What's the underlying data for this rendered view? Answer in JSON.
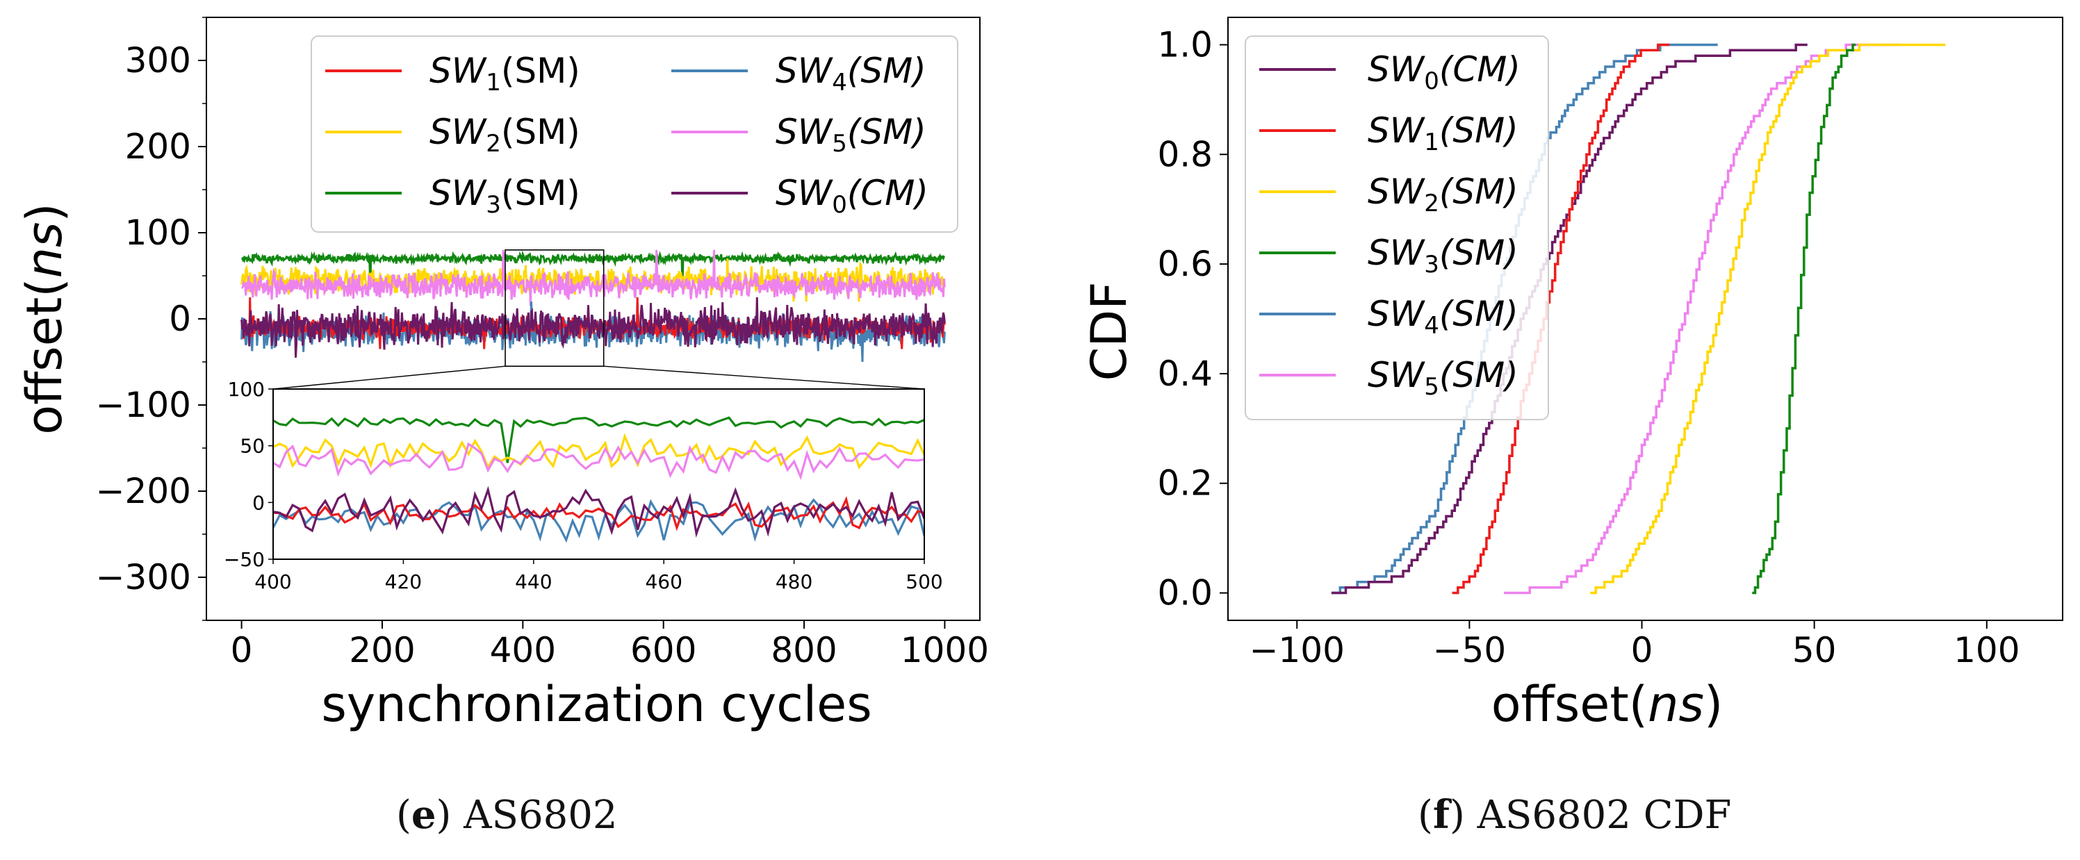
{
  "captions": {
    "e": {
      "letter": "e",
      "text": "AS6802"
    },
    "f": {
      "letter": "f",
      "text": "AS6802 CDF"
    }
  },
  "chart_data": [
    {
      "id": "panel-e",
      "type": "line",
      "title": "",
      "xlabel": "synchronization cycles",
      "ylabel": "offset(ns)",
      "xlim": [
        -50,
        1050
      ],
      "ylim": [
        -350,
        350
      ],
      "xticks": [
        0,
        200,
        400,
        600,
        800,
        1000
      ],
      "yticks": [
        300,
        200,
        100,
        0,
        -100,
        -200,
        -300
      ],
      "grid": false,
      "legend_position": "top-right",
      "legend_columns": 2,
      "series": [
        {
          "name": "SW1(SM)",
          "base": "SW",
          "sub": "1",
          "suffix": "(SM)",
          "italic_suffix": false,
          "color": "#ee1c1c",
          "mean": -10,
          "spread": 10,
          "min": -35,
          "max": 25
        },
        {
          "name": "SW2(SM)",
          "base": "SW",
          "sub": "2",
          "suffix": "(SM)",
          "italic_suffix": false,
          "color": "#ffd700",
          "mean": 45,
          "spread": 12,
          "min": 20,
          "max": 70
        },
        {
          "name": "SW3(SM)",
          "base": "SW",
          "sub": "3",
          "suffix": "(SM)",
          "italic_suffix": false,
          "color": "#118811",
          "mean": 70,
          "spread": 4,
          "min": 35,
          "max": 75
        },
        {
          "name": "SW4(SM)",
          "base": "SW",
          "sub": "4",
          "suffix": "(SM)",
          "italic_suffix": true,
          "color": "#4682b4",
          "mean": -15,
          "spread": 15,
          "min": -50,
          "max": 20
        },
        {
          "name": "SW5(SM)",
          "base": "SW",
          "sub": "5",
          "suffix": "(SM)",
          "italic_suffix": true,
          "color": "#ee82ee",
          "mean": 38,
          "spread": 12,
          "min": 15,
          "max": 80
        },
        {
          "name": "SW0(CM)",
          "base": "SW",
          "sub": "0",
          "suffix": "(CM)",
          "italic_suffix": true,
          "color": "#6b1a64",
          "mean": -8,
          "spread": 18,
          "min": -45,
          "max": 25
        }
      ],
      "inset": {
        "xlim": [
          400,
          500
        ],
        "ylim": [
          -50,
          100
        ],
        "xticks": [
          400,
          420,
          440,
          460,
          480,
          500
        ],
        "yticks": [
          100,
          50,
          0,
          -50
        ],
        "zoom_box": {
          "x": [
            375,
            515
          ],
          "y": [
            -55,
            80
          ]
        }
      }
    },
    {
      "id": "panel-f",
      "type": "line",
      "subtype": "cdf",
      "title": "",
      "xlabel": "offset(ns)",
      "ylabel": "CDF",
      "xlim": [
        -120,
        122
      ],
      "ylim": [
        -0.05,
        1.05
      ],
      "xticks": [
        -100,
        -50,
        0,
        50,
        100
      ],
      "yticks": [
        0.0,
        0.2,
        0.4,
        0.6,
        0.8,
        1.0
      ],
      "grid": false,
      "legend_position": "top-left",
      "legend_columns": 1,
      "series": [
        {
          "name": "SW0(CM)",
          "base": "SW",
          "sub": "0",
          "suffix": "(CM)",
          "italic_suffix": true,
          "color": "#6b1a64",
          "points": [
            [
              -90,
              0
            ],
            [
              -70,
              0.03
            ],
            [
              -55,
              0.15
            ],
            [
              -45,
              0.3
            ],
            [
              -35,
              0.5
            ],
            [
              -25,
              0.65
            ],
            [
              -15,
              0.78
            ],
            [
              -8,
              0.86
            ],
            [
              0,
              0.92
            ],
            [
              10,
              0.97
            ],
            [
              25,
              0.985
            ],
            [
              40,
              0.99
            ],
            [
              48,
              1
            ]
          ]
        },
        {
          "name": "SW1(SM)",
          "base": "SW",
          "sub": "1",
          "suffix": "(SM)",
          "italic_suffix": true,
          "color": "#ee1c1c",
          "points": [
            [
              -55,
              0
            ],
            [
              -48,
              0.04
            ],
            [
              -40,
              0.2
            ],
            [
              -35,
              0.35
            ],
            [
              -30,
              0.46
            ],
            [
              -25,
              0.6
            ],
            [
              -20,
              0.72
            ],
            [
              -15,
              0.82
            ],
            [
              -10,
              0.9
            ],
            [
              -5,
              0.96
            ],
            [
              0,
              0.99
            ],
            [
              8,
              1
            ]
          ]
        },
        {
          "name": "SW2(SM)",
          "base": "SW",
          "sub": "2",
          "suffix": "(SM)",
          "italic_suffix": true,
          "color": "#ffd700",
          "points": [
            [
              -15,
              0
            ],
            [
              -5,
              0.04
            ],
            [
              5,
              0.15
            ],
            [
              15,
              0.35
            ],
            [
              22,
              0.5
            ],
            [
              30,
              0.7
            ],
            [
              37,
              0.85
            ],
            [
              45,
              0.95
            ],
            [
              55,
              0.99
            ],
            [
              70,
              1
            ],
            [
              88,
              1
            ]
          ]
        },
        {
          "name": "SW3(SM)",
          "base": "SW",
          "sub": "3",
          "suffix": "(SM)",
          "italic_suffix": true,
          "color": "#118811",
          "points": [
            [
              32,
              0
            ],
            [
              38,
              0.1
            ],
            [
              42,
              0.3
            ],
            [
              45,
              0.5
            ],
            [
              48,
              0.7
            ],
            [
              52,
              0.85
            ],
            [
              55,
              0.93
            ],
            [
              58,
              0.98
            ],
            [
              62,
              1
            ]
          ]
        },
        {
          "name": "SW4(SM)",
          "base": "SW",
          "sub": "4",
          "suffix": "(SM)",
          "italic_suffix": true,
          "color": "#4682b4",
          "points": [
            [
              -90,
              0
            ],
            [
              -75,
              0.03
            ],
            [
              -60,
              0.15
            ],
            [
              -50,
              0.35
            ],
            [
              -42,
              0.55
            ],
            [
              -35,
              0.7
            ],
            [
              -28,
              0.82
            ],
            [
              -20,
              0.9
            ],
            [
              -10,
              0.96
            ],
            [
              0,
              0.99
            ],
            [
              10,
              1
            ],
            [
              22,
              1
            ]
          ]
        },
        {
          "name": "SW5(SM)",
          "base": "SW",
          "sub": "5",
          "suffix": "(SM)",
          "italic_suffix": true,
          "color": "#ee82ee",
          "points": [
            [
              -40,
              0
            ],
            [
              -25,
              0.01
            ],
            [
              -15,
              0.06
            ],
            [
              -5,
              0.18
            ],
            [
              5,
              0.35
            ],
            [
              12,
              0.5
            ],
            [
              20,
              0.68
            ],
            [
              28,
              0.82
            ],
            [
              38,
              0.92
            ],
            [
              50,
              0.98
            ],
            [
              62,
              1
            ],
            [
              75,
              1
            ]
          ]
        }
      ]
    }
  ]
}
